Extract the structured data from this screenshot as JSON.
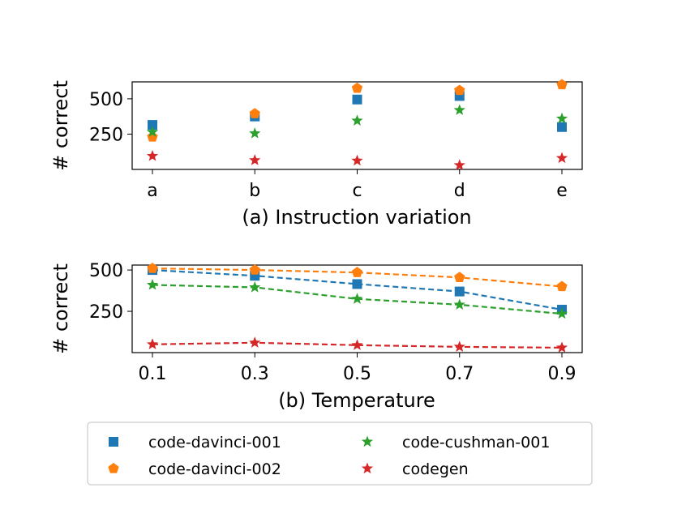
{
  "chart_data": [
    {
      "type": "scatter",
      "title": "",
      "xlabel": "(a) Instruction variation",
      "ylabel": "# correct",
      "categories": [
        "a",
        "b",
        "c",
        "d",
        "e"
      ],
      "yticks": [
        "250",
        "500"
      ],
      "ytick_values": [
        250,
        500
      ],
      "ylim": [
        0,
        620
      ],
      "series": [
        {
          "name": "code-davinci-001",
          "values": [
            315,
            375,
            495,
            520,
            300
          ]
        },
        {
          "name": "code-davinci-002",
          "values": [
            230,
            395,
            575,
            560,
            600
          ]
        },
        {
          "name": "code-cushman-001",
          "values": [
            265,
            255,
            345,
            420,
            360
          ]
        },
        {
          "name": "codegen",
          "values": [
            95,
            65,
            62,
            30,
            80
          ]
        }
      ]
    },
    {
      "type": "line",
      "title": "",
      "xlabel": "(b) Temperature",
      "ylabel": "# correct",
      "categories": [
        "0.1",
        "0.3",
        "0.5",
        "0.7",
        "0.9"
      ],
      "yticks": [
        "250",
        "500"
      ],
      "ytick_values": [
        250,
        500
      ],
      "ylim": [
        0,
        530
      ],
      "series": [
        {
          "name": "code-davinci-001",
          "values": [
            500,
            465,
            415,
            370,
            260
          ]
        },
        {
          "name": "code-davinci-002",
          "values": [
            510,
            500,
            485,
            455,
            400
          ]
        },
        {
          "name": "code-cushman-001",
          "values": [
            410,
            395,
            325,
            290,
            235
          ]
        },
        {
          "name": "codegen",
          "values": [
            50,
            60,
            45,
            35,
            30
          ]
        }
      ]
    }
  ],
  "legend": {
    "position": "bottom",
    "entries": [
      {
        "name": "code-davinci-001",
        "color": "#1f77b4",
        "marker": "square"
      },
      {
        "name": "code-davinci-002",
        "color": "#ff7f0e",
        "marker": "pentagon"
      },
      {
        "name": "code-cushman-001",
        "color": "#2ca02c",
        "marker": "star"
      },
      {
        "name": "codegen",
        "color": "#d62728",
        "marker": "star"
      }
    ]
  }
}
